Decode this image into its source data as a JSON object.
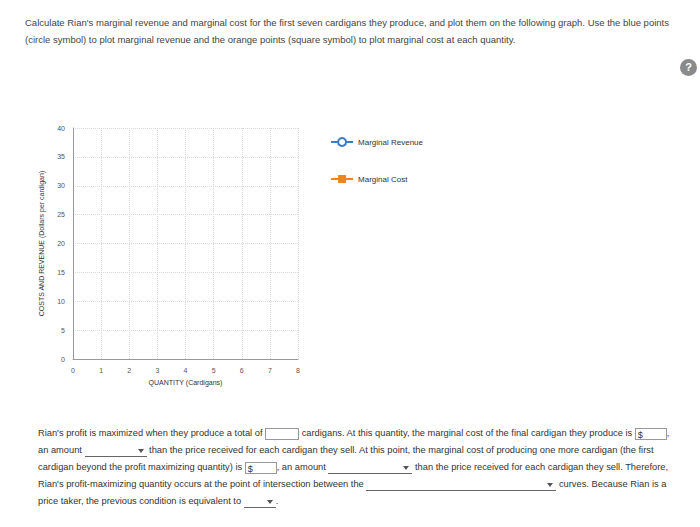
{
  "instructions": "Calculate Rian's marginal revenue and marginal cost for the first seven cardigans they produce, and plot them on the following graph. Use the blue points (circle symbol) to plot marginal revenue and the orange points (square symbol) to plot marginal cost at each quantity.",
  "help_icon": "?",
  "chart_data": {
    "type": "line",
    "x_label": "QUANTITY (Cardigans)",
    "y_label": "COSTS AND REVENUE (Dollars per cardigan)",
    "x": [],
    "series": [
      {
        "name": "Marginal Revenue",
        "color": "#3b7dc4",
        "marker": "circle",
        "values": []
      },
      {
        "name": "Marginal Cost",
        "color": "#f0851f",
        "marker": "square",
        "values": []
      }
    ],
    "xlim": [
      0,
      8
    ],
    "xticks": [
      0,
      1,
      2,
      3,
      4,
      5,
      6,
      7,
      8
    ],
    "ylim": [
      0,
      40
    ],
    "yticks": [
      0,
      5,
      10,
      15,
      20,
      25,
      30,
      35,
      40
    ],
    "grid": true,
    "legend": "right"
  },
  "question": {
    "segments": [
      {
        "kind": "text",
        "text": "Rian's profit is maximized when they produce a total of "
      },
      {
        "kind": "input"
      },
      {
        "kind": "text",
        "text": " cardigans. At this quantity, the marginal cost of the final cardigan they produce is "
      },
      {
        "kind": "input",
        "prefix": "$"
      },
      {
        "kind": "text",
        "text": ", an amount "
      },
      {
        "kind": "dropdown"
      },
      {
        "kind": "text",
        "text": " than the price received for each cardigan they sell. At this point, the marginal cost of producing one more cardigan (the first cardigan beyond the profit maximizing quantity) is "
      },
      {
        "kind": "input",
        "prefix": "$"
      },
      {
        "kind": "text",
        "text": ", an amount "
      },
      {
        "kind": "dropdown"
      },
      {
        "kind": "text",
        "text": " than the price received for each cardigan they sell. Therefore, Rian's profit-maximizing quantity occurs at the point of intersection between the "
      },
      {
        "kind": "dropdown"
      },
      {
        "kind": "text",
        "text": " curves. Because Rian is a price taker, the previous condition is equivalent to "
      },
      {
        "kind": "dropdown"
      },
      {
        "kind": "text",
        "text": "."
      }
    ]
  }
}
